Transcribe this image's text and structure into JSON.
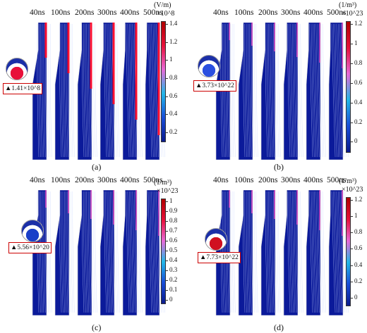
{
  "time_labels": [
    "40ns",
    "100ns",
    "200ns",
    "300ns",
    "400ns",
    "500ns"
  ],
  "panels": {
    "a": {
      "caption": "(a)",
      "unit": "(V/m)",
      "scale": "×10^8",
      "ticks": [
        "1.4",
        "1.2",
        "1",
        "0.8",
        "0.6",
        "0.4",
        "0.2"
      ],
      "annotation": "▲1.41×10^8",
      "colormap": [
        "#0a1a8c",
        "#1a4ed8",
        "#22b8e8",
        "#e86ad8",
        "#e8103a",
        "#b00000"
      ],
      "field": "electric field"
    },
    "b": {
      "caption": "(b)",
      "unit": "(1/m³)",
      "scale": "×10^23",
      "ticks": [
        "1.2",
        "1",
        "0.8",
        "0.6",
        "0.4",
        "0.2",
        "0"
      ],
      "annotation": "▲3.73×10^22",
      "colormap": [
        "#0a1a8c",
        "#1a4ed8",
        "#22b8e8",
        "#e86ad8",
        "#e8103a",
        "#b00000"
      ]
    },
    "c": {
      "caption": "(c)",
      "unit": "(1/m³)",
      "scale": "×10^23",
      "ticks": [
        "1",
        "0.9",
        "0.8",
        "0.7",
        "0.6",
        "0.5",
        "0.4",
        "0.3",
        "0.2",
        "0.1",
        "0"
      ],
      "annotation": "▲5.56×10^20",
      "colormap": [
        "#0a1a8c",
        "#1a4ed8",
        "#22b8e8",
        "#e86ad8",
        "#e8103a",
        "#b00000"
      ]
    },
    "d": {
      "caption": "(d)",
      "unit": "(1/m³)",
      "scale": "×10^23",
      "ticks": [
        "1.2",
        "1",
        "0.8",
        "0.6",
        "0.4",
        "0.2",
        "0"
      ],
      "annotation": "▲7.73×10^22",
      "colormap": [
        "#0a1a8c",
        "#1a4ed8",
        "#22b8e8",
        "#e86ad8",
        "#e8103a",
        "#b00000"
      ]
    }
  }
}
